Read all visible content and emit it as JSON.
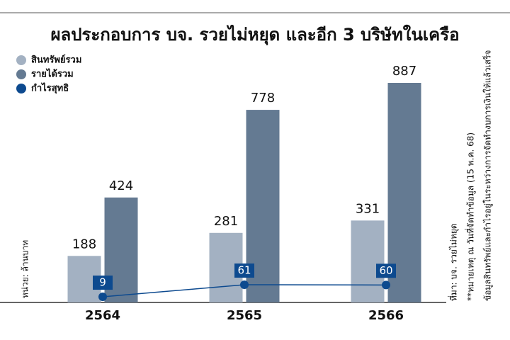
{
  "chart_data": {
    "type": "bar-line",
    "title": "ผลประกอบการ บจ. รวยไม่หยุด และอีก 3 บริษัทในเครือ",
    "categories": [
      "2564",
      "2565",
      "2566"
    ],
    "series": [
      {
        "name": "สินทรัพย์รวม",
        "color": "#a3b1c2",
        "type": "bar",
        "values": [
          188,
          281,
          331
        ]
      },
      {
        "name": "รายได้รวม",
        "color": "#647a92",
        "type": "bar",
        "values": [
          424,
          778,
          887
        ]
      },
      {
        "name": "กำไรสุทธิ",
        "color": "#0d4a8f",
        "type": "line",
        "values": [
          9,
          61,
          60
        ]
      }
    ],
    "unit_label": "หน่วย: ล้านบาท",
    "notes": [
      "ที่มา: บจ. รวยไม่หยุด",
      "**หมายเหตุ ณ วันที่จัดทำข้อมูล (15 พ.ค. 68)",
      "ข้อมูลสินทรัพย์และกำไรอยู่ในระหว่างการจัดทำงบการเงินให้แล้วเสร็จ"
    ]
  }
}
